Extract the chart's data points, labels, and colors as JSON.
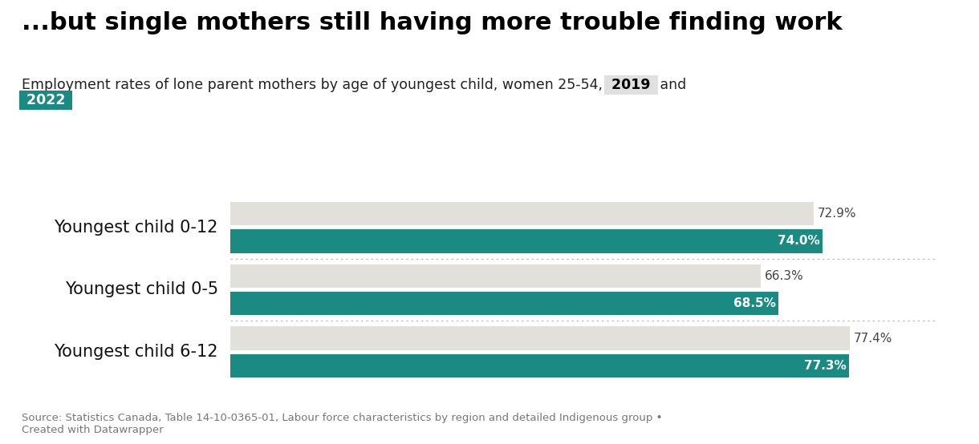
{
  "title": "...but single mothers still having more trouble finding work",
  "subtitle_plain": "Employment rates of lone parent mothers by age of youngest child, women 25-54, ",
  "subtitle_year1": "2019",
  "subtitle_mid": " and",
  "subtitle_year2": "2022",
  "categories": [
    "Youngest child 0-12",
    "Youngest child 0-5",
    "Youngest child 6-12"
  ],
  "values_2019": [
    72.9,
    66.3,
    77.4
  ],
  "values_2022": [
    74.0,
    68.5,
    77.3
  ],
  "labels_2019": [
    "72.9%",
    "66.3%",
    "77.4%"
  ],
  "labels_2022": [
    "74.0%",
    "68.5%",
    "77.3%"
  ],
  "color_2019": "#e2e0db",
  "color_2022": "#1a8a82",
  "bar_height": 0.38,
  "bar_gap": 0.06,
  "xlim": [
    0,
    88
  ],
  "background_color": "#ffffff",
  "title_fontsize": 22,
  "subtitle_fontsize": 12.5,
  "label_fontsize_2019": 11,
  "label_fontsize_2022": 11,
  "category_fontsize": 15,
  "source_text": "Source: Statistics Canada, Table 14-10-0365-01, Labour force characteristics by region and detailed Indigenous group •\nCreated with Datawrapper",
  "source_fontsize": 9.5,
  "year1_box_color": "#e0e0e0",
  "year1_text_color": "#000000",
  "year2_box_color": "#1a8a82",
  "year2_text_color": "#ffffff",
  "separator_color": "#bbbbbb",
  "label_color_2019": "#444444",
  "label_color_2022": "#ffffff"
}
